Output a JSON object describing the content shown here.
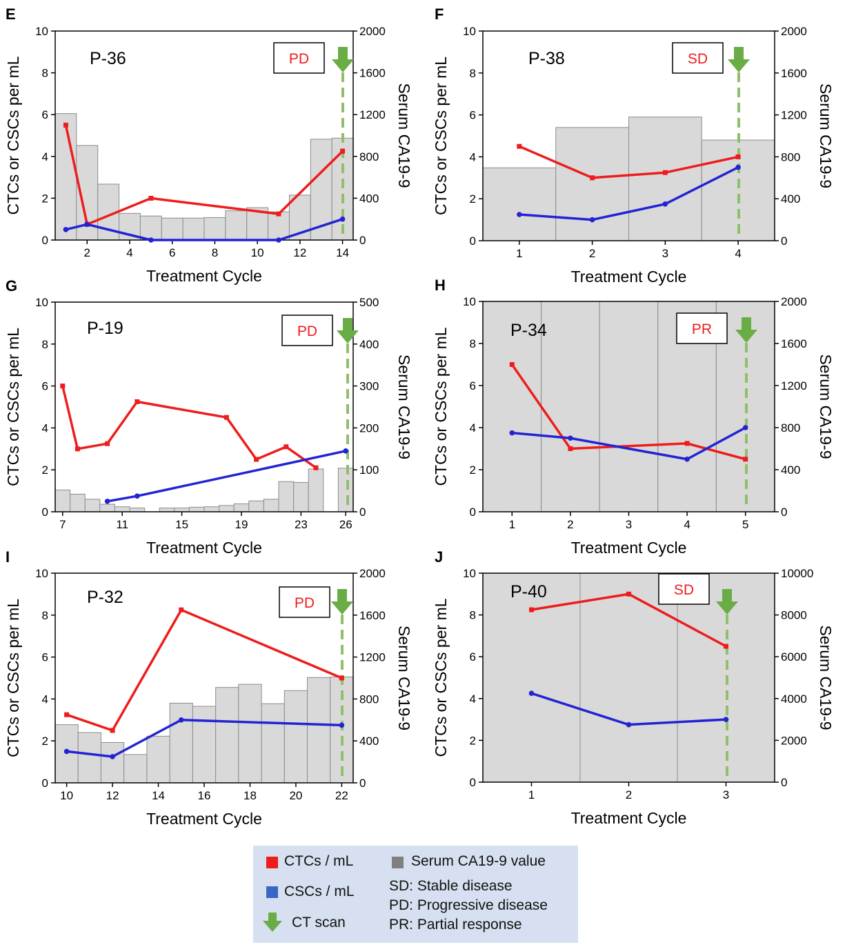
{
  "figure": {
    "y_left_label": "CTCs or CSCs per mL",
    "y_right_label": "Serum CA19-9",
    "x_label": "Treatment Cycle"
  },
  "chart_data": [
    {
      "panel": "E",
      "patient": "P-36",
      "status": "PD",
      "type": "line",
      "xlim": [
        0.5,
        14.5
      ],
      "xticks": [
        2,
        4,
        6,
        8,
        10,
        12,
        14
      ],
      "ylim_left": [
        0,
        10
      ],
      "yticks_left": [
        0,
        2,
        4,
        6,
        8,
        10
      ],
      "ylim_right": [
        0,
        2000
      ],
      "yticks_right": [
        0,
        400,
        800,
        1200,
        1600,
        2000
      ],
      "gray_background": false,
      "bars": {
        "name": "Serum CA19-9 value",
        "x": [
          1,
          2,
          3,
          4,
          5,
          6,
          7,
          8,
          9,
          10,
          11,
          12,
          13,
          14
        ],
        "values": [
          1210,
          905,
          535,
          255,
          230,
          210,
          210,
          215,
          280,
          310,
          270,
          430,
          965,
          975
        ]
      },
      "series": [
        {
          "name": "CTCs / mL",
          "color": "#ee1c1c",
          "x": [
            1,
            2,
            5,
            11,
            14
          ],
          "y": [
            5.5,
            0.75,
            2.0,
            1.25,
            4.25
          ]
        },
        {
          "name": "CSCs / mL",
          "color": "#2323d4",
          "x": [
            1,
            2,
            5,
            11,
            14
          ],
          "y": [
            0.5,
            0.75,
            0,
            0,
            1.0
          ]
        }
      ],
      "ct_scan_x": 14
    },
    {
      "panel": "F",
      "patient": "P-38",
      "status": "SD",
      "type": "line",
      "xlim": [
        0.5,
        4.5
      ],
      "xticks": [
        1,
        2,
        3,
        4
      ],
      "ylim_left": [
        0,
        10
      ],
      "yticks_left": [
        0,
        2,
        4,
        6,
        8,
        10
      ],
      "ylim_right": [
        0,
        2000
      ],
      "yticks_right": [
        0,
        400,
        800,
        1200,
        1600,
        2000
      ],
      "gray_background": false,
      "bars": {
        "name": "Serum CA19-9 value",
        "x": [
          1,
          2,
          3,
          4
        ],
        "values": [
          695,
          1080,
          1180,
          960
        ]
      },
      "series": [
        {
          "name": "CTCs / mL",
          "color": "#ee1c1c",
          "x": [
            1,
            2,
            3,
            4
          ],
          "y": [
            4.5,
            3.0,
            3.25,
            4.0
          ]
        },
        {
          "name": "CSCs / mL",
          "color": "#2323d4",
          "x": [
            1,
            2,
            3,
            4
          ],
          "y": [
            1.25,
            1.0,
            1.75,
            3.5
          ]
        }
      ],
      "ct_scan_x": 4
    },
    {
      "panel": "G",
      "patient": "P-19",
      "status": "PD",
      "type": "line",
      "xlim": [
        6.5,
        26.5
      ],
      "xticks": [
        7,
        11,
        15,
        19,
        23,
        26
      ],
      "ylim_left": [
        0,
        10
      ],
      "yticks_left": [
        0,
        2,
        4,
        6,
        8,
        10
      ],
      "ylim_right": [
        0,
        500
      ],
      "yticks_right": [
        0,
        100,
        200,
        300,
        400,
        500
      ],
      "gray_background": false,
      "bars": {
        "name": "Serum CA19-9 value",
        "x": [
          7,
          8,
          9,
          10,
          11,
          12,
          14,
          15,
          16,
          17,
          18,
          19,
          20,
          21,
          22,
          23,
          24,
          26
        ],
        "values": [
          52,
          42,
          30,
          18,
          12,
          9,
          9,
          9,
          11,
          12,
          15,
          19,
          26,
          30,
          72,
          70,
          102,
          104
        ]
      },
      "series": [
        {
          "name": "CTCs / mL",
          "color": "#ee1c1c",
          "x": [
            7,
            8,
            10,
            12,
            18,
            20,
            22,
            24
          ],
          "y": [
            6.0,
            3.0,
            3.25,
            5.25,
            4.5,
            2.5,
            3.1,
            2.1
          ]
        },
        {
          "name": "CSCs / mL",
          "color": "#2323d4",
          "x": [
            10,
            12,
            26
          ],
          "y": [
            0.5,
            0.75,
            2.9
          ]
        }
      ],
      "ct_scan_x": 26
    },
    {
      "panel": "H",
      "patient": "P-34",
      "status": "PR",
      "type": "line",
      "xlim": [
        0.5,
        5.5
      ],
      "xticks": [
        1,
        2,
        3,
        4,
        5
      ],
      "ylim_left": [
        0,
        10
      ],
      "yticks_left": [
        0,
        2,
        4,
        6,
        8,
        10
      ],
      "ylim_right": [
        0,
        2000
      ],
      "yticks_right": [
        0,
        400,
        800,
        1200,
        1600,
        2000
      ],
      "gray_background": true,
      "bars": {
        "name": "Serum CA19-9 value",
        "x": [
          1,
          2,
          3,
          4,
          5
        ],
        "values": [
          2000,
          2000,
          2000,
          2000,
          2000
        ]
      },
      "series": [
        {
          "name": "CTCs / mL",
          "color": "#ee1c1c",
          "x": [
            1,
            2,
            4,
            5
          ],
          "y": [
            7.0,
            3.0,
            3.25,
            2.5
          ]
        },
        {
          "name": "CSCs / mL",
          "color": "#2323d4",
          "x": [
            1,
            2,
            4,
            5
          ],
          "y": [
            3.75,
            3.5,
            2.5,
            4.0
          ]
        }
      ],
      "ct_scan_x": 5
    },
    {
      "panel": "I",
      "patient": "P-32",
      "status": "PD",
      "type": "line",
      "xlim": [
        9.5,
        22.5
      ],
      "xticks": [
        10,
        12,
        14,
        16,
        18,
        20,
        22
      ],
      "ylim_left": [
        0,
        10
      ],
      "yticks_left": [
        0,
        2,
        4,
        6,
        8,
        10
      ],
      "ylim_right": [
        0,
        2000
      ],
      "yticks_right": [
        0,
        400,
        800,
        1200,
        1600,
        2000
      ],
      "gray_background": false,
      "bars": {
        "name": "Serum CA19-9 value",
        "x": [
          10,
          11,
          12,
          13,
          14,
          15,
          16,
          17,
          18,
          19,
          20,
          21,
          22
        ],
        "values": [
          555,
          480,
          385,
          270,
          445,
          760,
          730,
          910,
          940,
          755,
          880,
          1005,
          1010
        ]
      },
      "series": [
        {
          "name": "CTCs / mL",
          "color": "#ee1c1c",
          "x": [
            10,
            12,
            15,
            22
          ],
          "y": [
            3.25,
            2.5,
            8.25,
            5.0
          ]
        },
        {
          "name": "CSCs / mL",
          "color": "#2323d4",
          "x": [
            10,
            12,
            15,
            22
          ],
          "y": [
            1.5,
            1.25,
            3.0,
            2.75
          ]
        }
      ],
      "ct_scan_x": 22
    },
    {
      "panel": "J",
      "patient": "P-40",
      "status": "SD",
      "type": "line",
      "xlim": [
        0.5,
        3.5
      ],
      "xticks": [
        1,
        2,
        3
      ],
      "ylim_left": [
        0,
        10
      ],
      "yticks_left": [
        0,
        2,
        4,
        6,
        8,
        10
      ],
      "ylim_right": [
        0,
        10000
      ],
      "yticks_right": [
        0,
        2000,
        4000,
        6000,
        8000,
        10000
      ],
      "gray_background": true,
      "bars": {
        "name": "Serum CA19-9 value",
        "x": [
          1,
          2,
          3
        ],
        "values": [
          10000,
          10000,
          10000
        ]
      },
      "series": [
        {
          "name": "CTCs / mL",
          "color": "#ee1c1c",
          "x": [
            1,
            2,
            3
          ],
          "y": [
            8.25,
            9.0,
            6.5
          ]
        },
        {
          "name": "CSCs / mL",
          "color": "#2323d4",
          "x": [
            1,
            2,
            3
          ],
          "y": [
            4.25,
            2.75,
            3.0
          ]
        }
      ],
      "ct_scan_x": 3
    }
  ],
  "legend": {
    "ctc_label": "CTCs / mL",
    "csc_label": "CSCs / mL",
    "ct_label": "CT scan",
    "ca_label": "Serum CA19-9 value",
    "sd_label": "SD: Stable disease",
    "pd_label": "PD: Progressive disease",
    "pr_label": "PR: Partial response",
    "ctc_color": "#ee1c1c",
    "csc_color": "#3a66c6",
    "ct_color": "#6aac46",
    "ca_color": "#808080"
  }
}
